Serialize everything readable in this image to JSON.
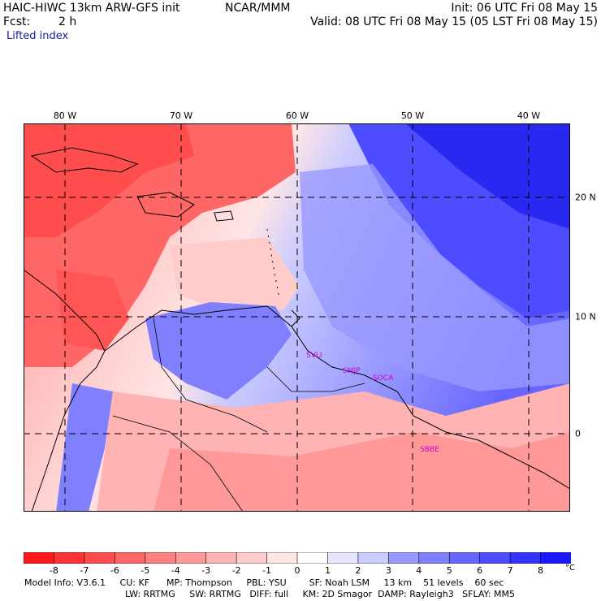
{
  "header": {
    "model": "HAIC-HIWC 13km ARW-GFS init",
    "org": "NCAR/MMM",
    "init": "Init: 06 UTC Fri 08 May 15",
    "fcst_label": "Fcst:",
    "fcst_value": "2 h",
    "valid": "Valid: 08 UTC Fri 08 May 15 (05 LST Fri 08 May 15)",
    "field": "Lifted index"
  },
  "map": {
    "lon_labels": [
      "80 W",
      "70 W",
      "60 W",
      "50 W",
      "40 W"
    ],
    "lat_labels": [
      "20 N",
      "10 N",
      "0"
    ],
    "stations": [
      "SVLI",
      "SMJP",
      "SOCA",
      "SBBE"
    ],
    "lifted_index_field": {
      "unit": "°C",
      "note_regions": [
        {
          "region": "northeast Atlantic",
          "value": 8
        },
        {
          "region": "central Atlantic",
          "value": 3
        },
        {
          "region": "Caribbean",
          "value": -5
        },
        {
          "region": "northern South America",
          "value": -2
        },
        {
          "region": "Venezuela coast",
          "value": 4
        }
      ]
    }
  },
  "colorbar": {
    "ticks": [
      "-8",
      "-7",
      "-6",
      "-5",
      "-4",
      "-3",
      "-2",
      "-1",
      "0",
      "1",
      "2",
      "3",
      "4",
      "5",
      "6",
      "7",
      "8"
    ],
    "unit": "°C",
    "colors": [
      "#ff1a1a",
      "#ff3333",
      "#ff4d4d",
      "#ff6666",
      "#ff8080",
      "#ff9999",
      "#ffb3b3",
      "#ffcccc",
      "#ffe6e6",
      "#ffffff",
      "#e6e6ff",
      "#ccccff",
      "#9999ff",
      "#8080ff",
      "#6666ff",
      "#4d4dff",
      "#3333ff",
      "#1a1aff"
    ]
  },
  "footer": {
    "line1": "Model Info: V3.6.1     CU: KF      MP: Thompson     PBL: YSU        SF: Noah LSM     13 km    51 levels    60 sec",
    "line2": "LW: RRTMG     SW: RRTMG   DIFF: full     KM: 2D Smagor  DAMP: Rayleigh3   SFLAY: MM5"
  }
}
